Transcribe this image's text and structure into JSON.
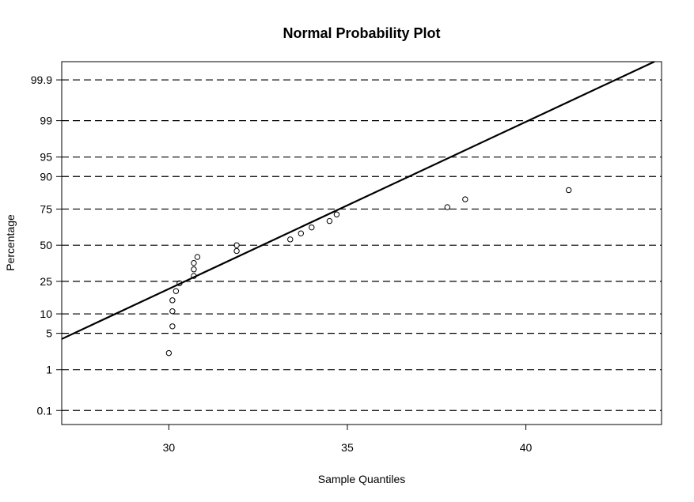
{
  "chart_data": {
    "type": "scatter",
    "title": "Normal Probability Plot",
    "xlabel": "Sample Quantiles",
    "ylabel": "Percentage",
    "xlim": [
      27.0,
      43.8
    ],
    "y_scale": "normal-probability (percent)",
    "ylim_percent": [
      0.04,
      99.97
    ],
    "x_ticks": [
      30,
      35,
      40
    ],
    "y_ticks": [
      0.1,
      1,
      5,
      10,
      25,
      50,
      75,
      90,
      95,
      99,
      99.9
    ],
    "y_tick_labels": [
      "0.1",
      "1",
      "5",
      "10",
      "25",
      "50",
      "75",
      "90",
      "95",
      "99",
      "99.9"
    ],
    "grid": "horizontal dashed lines at y ticks",
    "legend": "none",
    "points": [
      {
        "x": 30.0,
        "y": 2.2
      },
      {
        "x": 30.1,
        "y": 6.5
      },
      {
        "x": 30.1,
        "y": 10.9
      },
      {
        "x": 30.1,
        "y": 15.2
      },
      {
        "x": 30.2,
        "y": 19.6
      },
      {
        "x": 30.3,
        "y": 23.9
      },
      {
        "x": 30.7,
        "y": 28.3
      },
      {
        "x": 30.7,
        "y": 32.6
      },
      {
        "x": 30.7,
        "y": 37.0
      },
      {
        "x": 30.8,
        "y": 41.3
      },
      {
        "x": 31.9,
        "y": 45.7
      },
      {
        "x": 31.9,
        "y": 50.0
      },
      {
        "x": 33.4,
        "y": 54.3
      },
      {
        "x": 33.7,
        "y": 58.7
      },
      {
        "x": 34.0,
        "y": 63.0
      },
      {
        "x": 34.5,
        "y": 67.4
      },
      {
        "x": 34.7,
        "y": 71.7
      },
      {
        "x": 37.8,
        "y": 76.1
      },
      {
        "x": 38.3,
        "y": 80.4
      },
      {
        "x": 41.2,
        "y": 84.8
      }
    ],
    "reference_line": {
      "type": "normal fit",
      "points": [
        {
          "x": 27.0,
          "y": 4.0
        },
        {
          "x": 43.6,
          "y": 99.97
        }
      ]
    },
    "colors": {
      "points": "#000000",
      "line": "#000000",
      "grid": "#000000",
      "background": "#ffffff"
    }
  }
}
